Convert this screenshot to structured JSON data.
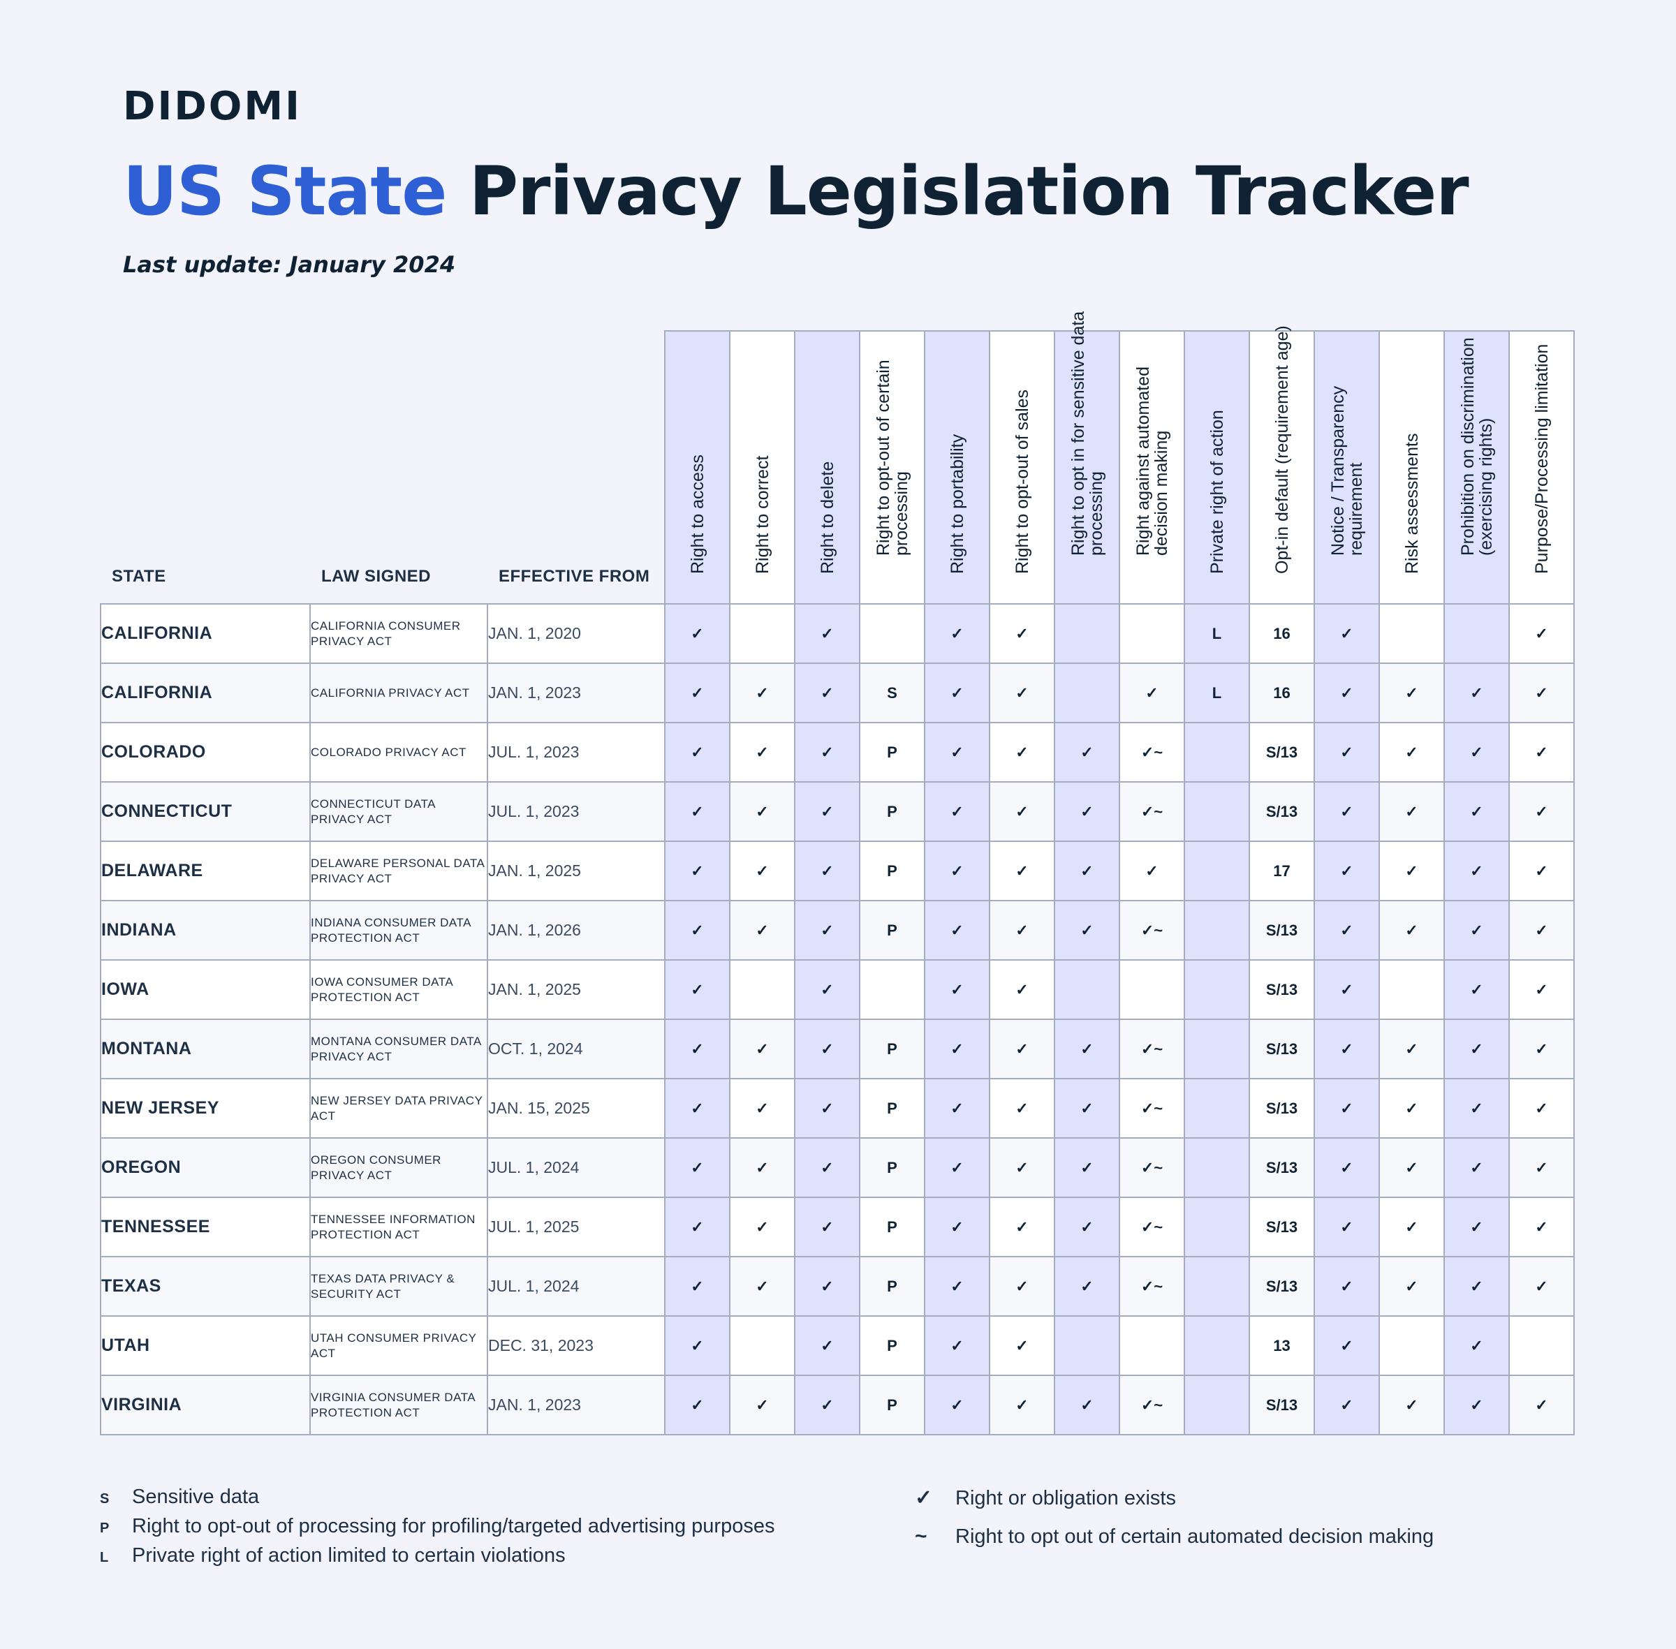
{
  "brand": "DIDOMI",
  "title": {
    "accent": "US State",
    "rest": " Privacy Legislation Tracker"
  },
  "last_update": "Last update: January 2024",
  "table": {
    "headers": {
      "state": "STATE",
      "law": "LAW SIGNED",
      "effective": "EFFECTIVE FROM",
      "rights": [
        "Right to access",
        "Right to correct",
        "Right to delete",
        "Right to opt-out of certain processing",
        "Right to portability",
        "Right to opt-out of sales",
        "Right to opt in for sensitive data processing",
        "Right against automated decision making",
        "Private right of action",
        "Opt-in default (requirement age)",
        "Notice / Transparency requirement",
        "Risk assessments",
        "Prohibition on discrimination (exercising rights)",
        "Purpose/Processing limitation"
      ]
    },
    "rows": [
      {
        "state": "CALIFORNIA",
        "law": "CALIFORNIA CONSUMER PRIVACY ACT",
        "effective": "JAN. 1, 2020",
        "values": [
          "✓",
          "",
          "✓",
          "",
          "✓",
          "✓",
          "",
          "",
          "L",
          "16",
          "✓",
          "",
          "",
          "✓"
        ]
      },
      {
        "state": "CALIFORNIA",
        "law": "CALIFORNIA PRIVACY ACT",
        "effective": "JAN. 1, 2023",
        "values": [
          "✓",
          "✓",
          "✓",
          "S",
          "✓",
          "✓",
          "",
          "✓",
          "L",
          "16",
          "✓",
          "✓",
          "✓",
          "✓"
        ]
      },
      {
        "state": "COLORADO",
        "law": "COLORADO PRIVACY ACT",
        "effective": "JUL. 1, 2023",
        "values": [
          "✓",
          "✓",
          "✓",
          "P",
          "✓",
          "✓",
          "✓",
          "✓~",
          "",
          "S/13",
          "✓",
          "✓",
          "✓",
          "✓"
        ]
      },
      {
        "state": "CONNECTICUT",
        "law": "CONNECTICUT DATA PRIVACY ACT",
        "effective": "JUL. 1, 2023",
        "values": [
          "✓",
          "✓",
          "✓",
          "P",
          "✓",
          "✓",
          "✓",
          "✓~",
          "",
          "S/13",
          "✓",
          "✓",
          "✓",
          "✓"
        ]
      },
      {
        "state": "DELAWARE",
        "law": "DELAWARE PERSONAL DATA PRIVACY ACT",
        "effective": "JAN. 1, 2025",
        "values": [
          "✓",
          "✓",
          "✓",
          "P",
          "✓",
          "✓",
          "✓",
          "✓",
          "",
          "17",
          "✓",
          "✓",
          "✓",
          "✓"
        ]
      },
      {
        "state": "INDIANA",
        "law": "INDIANA CONSUMER DATA PROTECTION ACT",
        "effective": "JAN. 1, 2026",
        "values": [
          "✓",
          "✓",
          "✓",
          "P",
          "✓",
          "✓",
          "✓",
          "✓~",
          "",
          "S/13",
          "✓",
          "✓",
          "✓",
          "✓"
        ]
      },
      {
        "state": "IOWA",
        "law": "IOWA CONSUMER DATA PROTECTION ACT",
        "effective": "JAN. 1, 2025",
        "values": [
          "✓",
          "",
          "✓",
          "",
          "✓",
          "✓",
          "",
          "",
          "",
          "S/13",
          "✓",
          "",
          "✓",
          "✓"
        ]
      },
      {
        "state": "MONTANA",
        "law": "MONTANA CONSUMER DATA PRIVACY ACT",
        "effective": "OCT. 1, 2024",
        "values": [
          "✓",
          "✓",
          "✓",
          "P",
          "✓",
          "✓",
          "✓",
          "✓~",
          "",
          "S/13",
          "✓",
          "✓",
          "✓",
          "✓"
        ]
      },
      {
        "state": "NEW JERSEY",
        "law": "NEW JERSEY DATA PRIVACY ACT",
        "effective": "JAN. 15, 2025",
        "values": [
          "✓",
          "✓",
          "✓",
          "P",
          "✓",
          "✓",
          "✓",
          "✓~",
          "",
          "S/13",
          "✓",
          "✓",
          "✓",
          "✓"
        ]
      },
      {
        "state": "OREGON",
        "law": "OREGON CONSUMER PRIVACY ACT",
        "effective": "JUL. 1, 2024",
        "values": [
          "✓",
          "✓",
          "✓",
          "P",
          "✓",
          "✓",
          "✓",
          "✓~",
          "",
          "S/13",
          "✓",
          "✓",
          "✓",
          "✓"
        ]
      },
      {
        "state": "TENNESSEE",
        "law": "TENNESSEE INFORMATION PROTECTION ACT",
        "effective": "JUL. 1, 2025",
        "values": [
          "✓",
          "✓",
          "✓",
          "P",
          "✓",
          "✓",
          "✓",
          "✓~",
          "",
          "S/13",
          "✓",
          "✓",
          "✓",
          "✓"
        ]
      },
      {
        "state": "TEXAS",
        "law": "TEXAS DATA PRIVACY & SECURITY ACT",
        "effective": "JUL. 1, 2024",
        "values": [
          "✓",
          "✓",
          "✓",
          "P",
          "✓",
          "✓",
          "✓",
          "✓~",
          "",
          "S/13",
          "✓",
          "✓",
          "✓",
          "✓"
        ]
      },
      {
        "state": "UTAH",
        "law": "UTAH CONSUMER PRIVACY ACT",
        "effective": "DEC. 31, 2023",
        "values": [
          "✓",
          "",
          "✓",
          "P",
          "✓",
          "✓",
          "",
          "",
          "",
          "13",
          "✓",
          "",
          "✓",
          ""
        ]
      },
      {
        "state": "VIRGINIA",
        "law": "VIRGINIA CONSUMER DATA PROTECTION ACT",
        "effective": "JAN. 1, 2023",
        "values": [
          "✓",
          "✓",
          "✓",
          "P",
          "✓",
          "✓",
          "✓",
          "✓~",
          "",
          "S/13",
          "✓",
          "✓",
          "✓",
          "✓"
        ]
      }
    ]
  },
  "legend": {
    "left": [
      {
        "key": "S",
        "text": "Sensitive data"
      },
      {
        "key": "P",
        "text": "Right to opt-out of processing for profiling/targeted advertising purposes"
      },
      {
        "key": "L",
        "text": "Private right of action limited to certain violations"
      }
    ],
    "right": [
      {
        "key": "✓",
        "text": "Right or obligation exists"
      },
      {
        "key": "~",
        "text": "Right to opt out of certain automated decision making"
      }
    ]
  },
  "colors": {
    "accent": "#2f5fd4",
    "dark": "#0f2233",
    "column_shade": "#dfe2fc",
    "background": "#f2f3fb"
  }
}
